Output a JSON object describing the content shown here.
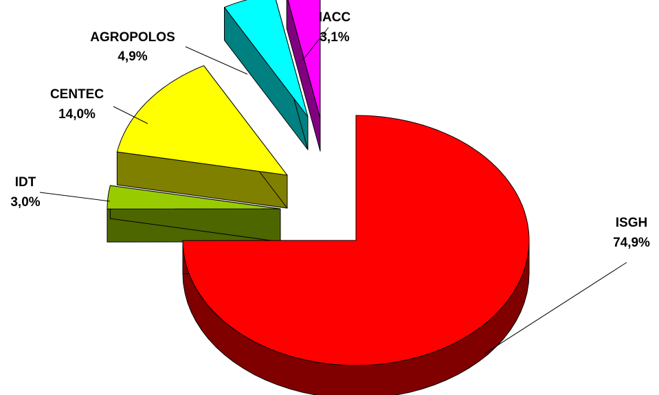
{
  "chart_data": {
    "type": "pie",
    "style": "3d-exploded",
    "title": "",
    "slices": [
      {
        "label": "ISGH",
        "pct_label": "74,9%",
        "value": 74.9,
        "color": "#ff0000",
        "side_color": "#800000"
      },
      {
        "label": "IDT",
        "pct_label": "3,0%",
        "value": 3.0,
        "color": "#99cc00",
        "side_color": "#4d6600"
      },
      {
        "label": "CENTEC",
        "pct_label": "14,0%",
        "value": 14.0,
        "color": "#ffff00",
        "side_color": "#808000"
      },
      {
        "label": "AGROPOLOS",
        "pct_label": "4,9%",
        "value": 4.9,
        "color": "#00ffff",
        "side_color": "#008080"
      },
      {
        "label": "IACC",
        "pct_label": "3,1%",
        "value": 3.1,
        "color": "#ff00ff",
        "side_color": "#800080"
      }
    ],
    "legend": "none"
  }
}
